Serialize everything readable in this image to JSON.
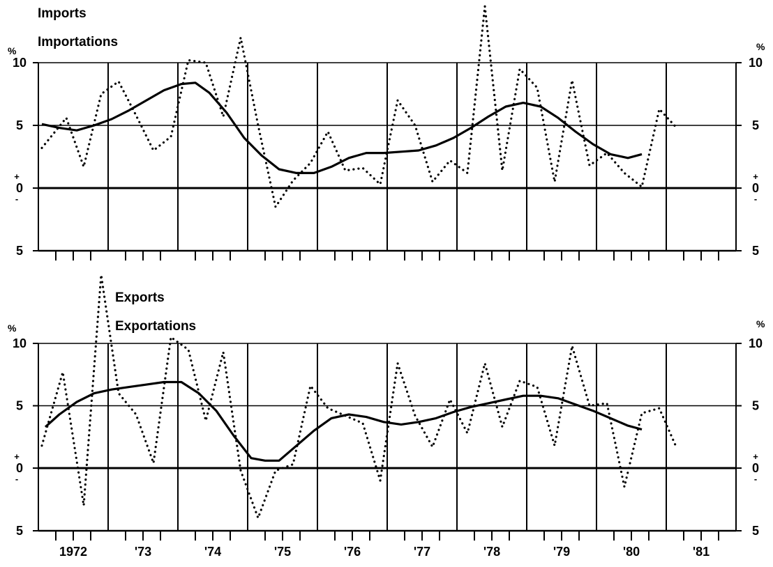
{
  "chart_data": [
    {
      "type": "line",
      "title": "Imports",
      "subtitle": "Importations",
      "unit_left": "%",
      "unit_right": "%",
      "ylim": [
        -5,
        10
      ],
      "y_ticks": [
        {
          "value": 10,
          "label": "10"
        },
        {
          "value": 5,
          "label": "5"
        },
        {
          "value": 0,
          "label": "0"
        },
        {
          "value": -5,
          "label": "5"
        }
      ],
      "sign_plus": "+",
      "sign_minus": "-",
      "xlim": [
        1971.5,
        1981.5
      ],
      "grid": true,
      "series": [
        {
          "style": "dotted",
          "x": [
            1971.55,
            1971.9,
            1972.15,
            1972.4,
            1972.65,
            1972.9,
            1973.15,
            1973.4,
            1973.65,
            1973.9,
            1974.15,
            1974.4,
            1974.65,
            1974.9,
            1975.15,
            1975.4,
            1975.65,
            1975.9,
            1976.15,
            1976.4,
            1976.65,
            1976.9,
            1977.15,
            1977.4,
            1977.65,
            1977.9,
            1978.15,
            1978.4,
            1978.65,
            1978.9,
            1979.15,
            1979.4,
            1979.65,
            1979.9,
            1980.15,
            1980.4,
            1980.65
          ],
          "values": [
            3.2,
            5.6,
            1.7,
            7.5,
            8.5,
            5.8,
            3.0,
            4.1,
            10.2,
            10.0,
            5.7,
            12.0,
            5.0,
            -1.5,
            0.6,
            2.0,
            4.5,
            1.4,
            1.6,
            0.3,
            7.0,
            5.0,
            0.5,
            2.2,
            1.2,
            14.5,
            1.4,
            9.5,
            8.0,
            0.5,
            8.6,
            1.8,
            2.8,
            1.2,
            0.1,
            6.3,
            4.8
          ]
        },
        {
          "style": "solid",
          "x": [
            1971.55,
            1971.8,
            1972.05,
            1972.3,
            1972.55,
            1972.8,
            1973.05,
            1973.3,
            1973.55,
            1973.75,
            1973.95,
            1974.2,
            1974.45,
            1974.7,
            1974.95,
            1975.2,
            1975.45,
            1975.7,
            1975.95,
            1976.2,
            1976.45,
            1976.7,
            1976.95,
            1977.2,
            1977.45,
            1977.7,
            1977.95,
            1978.2,
            1978.45,
            1978.7,
            1978.95,
            1979.2,
            1979.45,
            1979.7,
            1979.95,
            1980.15
          ],
          "values": [
            5.1,
            4.8,
            4.6,
            5.0,
            5.5,
            6.2,
            7.0,
            7.8,
            8.3,
            8.4,
            7.6,
            6.0,
            4.0,
            2.6,
            1.5,
            1.2,
            1.2,
            1.7,
            2.4,
            2.8,
            2.8,
            2.9,
            3.0,
            3.4,
            4.0,
            4.8,
            5.7,
            6.5,
            6.8,
            6.5,
            5.6,
            4.5,
            3.5,
            2.7,
            2.4,
            2.7
          ]
        }
      ]
    },
    {
      "type": "line",
      "title": "Exports",
      "subtitle": "Exportations",
      "unit_left": "%",
      "unit_right": "%",
      "ylim": [
        -5,
        10
      ],
      "y_ticks": [
        {
          "value": 10,
          "label": "10"
        },
        {
          "value": 5,
          "label": "5"
        },
        {
          "value": 0,
          "label": "0"
        },
        {
          "value": -5,
          "label": "5"
        }
      ],
      "sign_plus": "+",
      "sign_minus": "-",
      "xlim": [
        1971.5,
        1981.5
      ],
      "grid": true,
      "x_tick_labels": [
        "1972",
        "'73",
        "'74",
        "'75",
        "'76",
        "'77",
        "'78",
        "'79",
        "'80",
        "'81"
      ],
      "series": [
        {
          "style": "dotted",
          "x": [
            1971.55,
            1971.85,
            1972.15,
            1972.4,
            1972.65,
            1972.9,
            1973.15,
            1973.4,
            1973.65,
            1973.9,
            1974.15,
            1974.4,
            1974.65,
            1974.9,
            1975.15,
            1975.4,
            1975.65,
            1975.9,
            1976.15,
            1976.4,
            1976.65,
            1976.9,
            1977.15,
            1977.4,
            1977.65,
            1977.9,
            1978.15,
            1978.4,
            1978.65,
            1978.9,
            1979.15,
            1979.4,
            1979.65,
            1979.9,
            1980.15,
            1980.4,
            1980.65
          ],
          "values": [
            1.8,
            7.7,
            -3.0,
            15.5,
            6.0,
            4.3,
            0.4,
            10.5,
            9.5,
            3.8,
            9.3,
            -0.2,
            -4.0,
            -0.2,
            0.3,
            6.6,
            4.8,
            4.2,
            3.6,
            -1.0,
            8.4,
            4.2,
            1.7,
            5.5,
            2.8,
            8.4,
            3.3,
            7.0,
            6.5,
            1.8,
            9.8,
            5.0,
            5.2,
            -1.5,
            4.4,
            4.8,
            1.6
          ]
        },
        {
          "style": "solid",
          "x": [
            1971.6,
            1971.8,
            1972.05,
            1972.3,
            1972.55,
            1972.8,
            1973.05,
            1973.3,
            1973.55,
            1973.8,
            1974.05,
            1974.3,
            1974.55,
            1974.75,
            1974.95,
            1975.2,
            1975.45,
            1975.7,
            1975.95,
            1976.2,
            1976.45,
            1976.7,
            1976.95,
            1977.2,
            1977.45,
            1977.7,
            1977.95,
            1978.2,
            1978.45,
            1978.7,
            1978.95,
            1979.2,
            1979.45,
            1979.7,
            1979.95,
            1980.15
          ],
          "values": [
            3.3,
            4.3,
            5.3,
            6.0,
            6.3,
            6.5,
            6.7,
            6.9,
            6.9,
            6.0,
            4.6,
            2.6,
            0.8,
            0.6,
            0.6,
            1.8,
            3.0,
            4.0,
            4.3,
            4.1,
            3.7,
            3.5,
            3.7,
            4.0,
            4.5,
            4.9,
            5.2,
            5.5,
            5.8,
            5.8,
            5.6,
            5.1,
            4.6,
            4.0,
            3.4,
            3.1
          ]
        }
      ]
    }
  ]
}
